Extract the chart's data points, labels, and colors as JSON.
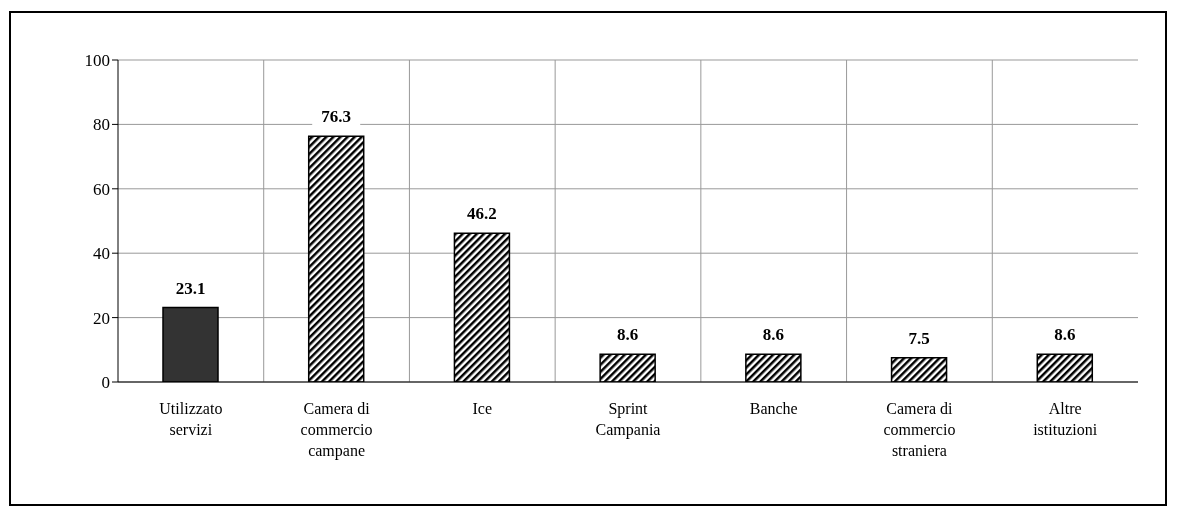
{
  "chart_data": {
    "type": "bar",
    "categories": [
      "Utilizzato servizi",
      "Camera di commercio campane",
      "Ice",
      "Sprint Campania",
      "Banche",
      "Camera di commercio straniera",
      "Altre istituzioni"
    ],
    "values": [
      23.1,
      76.3,
      46.2,
      8.6,
      8.6,
      7.5,
      8.6
    ],
    "colors": [
      "#333333",
      "#000000",
      "#000000",
      "#000000",
      "#000000",
      "#000000",
      "#000000"
    ],
    "ylim": [
      0,
      100
    ],
    "yticks": [
      0,
      20,
      40,
      60,
      80,
      100
    ],
    "grid": true,
    "data_labels": true
  }
}
